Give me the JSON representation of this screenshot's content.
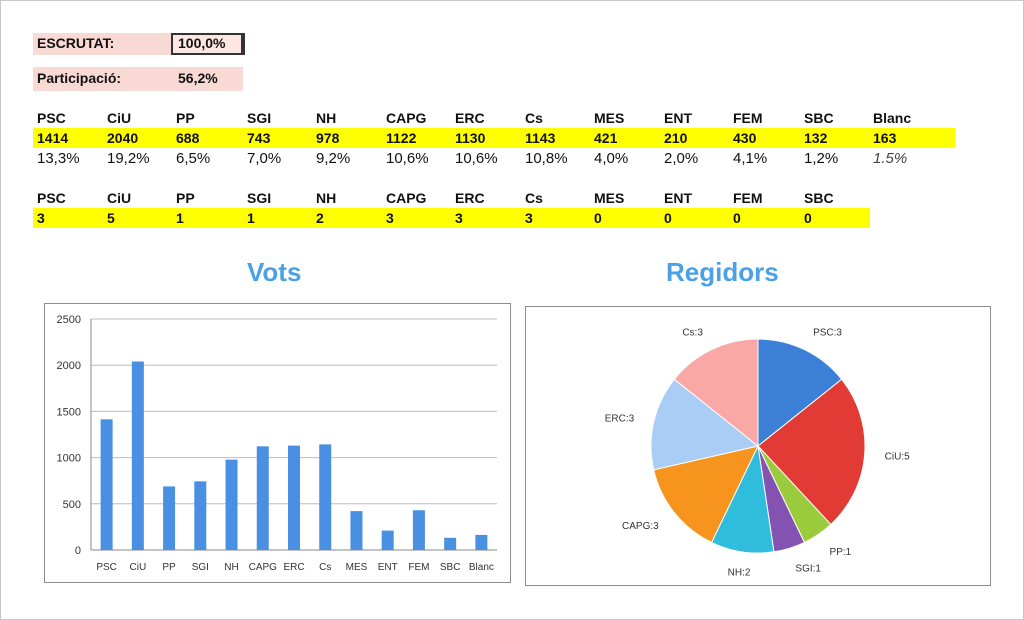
{
  "summary": {
    "escrutat_label": "ESCRUTAT:",
    "escrutat_value": "100,0%",
    "participacio_label": "Participació:",
    "participacio_value": "56,2%"
  },
  "votes_table": {
    "headers": [
      "PSC",
      "CiU",
      "PP",
      "SGI",
      "NH",
      "CAPG",
      "ERC",
      "Cs",
      "MES",
      "ENT",
      "FEM",
      "SBC",
      "Blanc"
    ],
    "counts": [
      "1414",
      "2040",
      "688",
      "743",
      "978",
      "1122",
      "1130",
      "1143",
      "421",
      "210",
      "430",
      "132",
      "163"
    ],
    "percents": [
      "13,3%",
      "19,2%",
      "6,5%",
      "7,0%",
      "9,2%",
      "10,6%",
      "10,6%",
      "10,8%",
      "4,0%",
      "2,0%",
      "4,1%",
      "1,2%",
      "1.5%"
    ]
  },
  "seats_table": {
    "headers": [
      "PSC",
      "CiU",
      "PP",
      "SGI",
      "NH",
      "CAPG",
      "ERC",
      "Cs",
      "MES",
      "ENT",
      "FEM",
      "SBC"
    ],
    "seats": [
      "3",
      "5",
      "1",
      "1",
      "2",
      "3",
      "3",
      "3",
      "0",
      "0",
      "0",
      "0"
    ]
  },
  "chart_titles": {
    "votes": "Vots",
    "seats": "Regidors"
  },
  "chart_data": [
    {
      "type": "bar",
      "title": "Vots",
      "categories": [
        "PSC",
        "CiU",
        "PP",
        "SGI",
        "NH",
        "CAPG",
        "ERC",
        "Cs",
        "MES",
        "ENT",
        "FEM",
        "SBC",
        "Blanc"
      ],
      "values": [
        1414,
        2040,
        688,
        743,
        978,
        1122,
        1130,
        1143,
        421,
        210,
        430,
        132,
        163
      ],
      "ylim": [
        0,
        2500
      ],
      "yticks": [
        0,
        500,
        1000,
        1500,
        2000,
        2500
      ],
      "grid": true,
      "color": "#4a90e2"
    },
    {
      "type": "pie",
      "title": "Regidors",
      "slices": [
        {
          "label": "PSC:3",
          "value": 3,
          "color": "#3c7fd6"
        },
        {
          "label": "CiU:5",
          "value": 5,
          "color": "#e23b35"
        },
        {
          "label": "PP:1",
          "value": 1,
          "color": "#9acb3c"
        },
        {
          "label": "SGI:1",
          "value": 1,
          "color": "#8453b2"
        },
        {
          "label": "NH:2",
          "value": 2,
          "color": "#30bcdc"
        },
        {
          "label": "CAPG:3",
          "value": 3,
          "color": "#f7941d"
        },
        {
          "label": "ERC:3",
          "value": 3,
          "color": "#aacdf6"
        },
        {
          "label": "Cs:3",
          "value": 3,
          "color": "#f9a8a5"
        }
      ]
    }
  ]
}
